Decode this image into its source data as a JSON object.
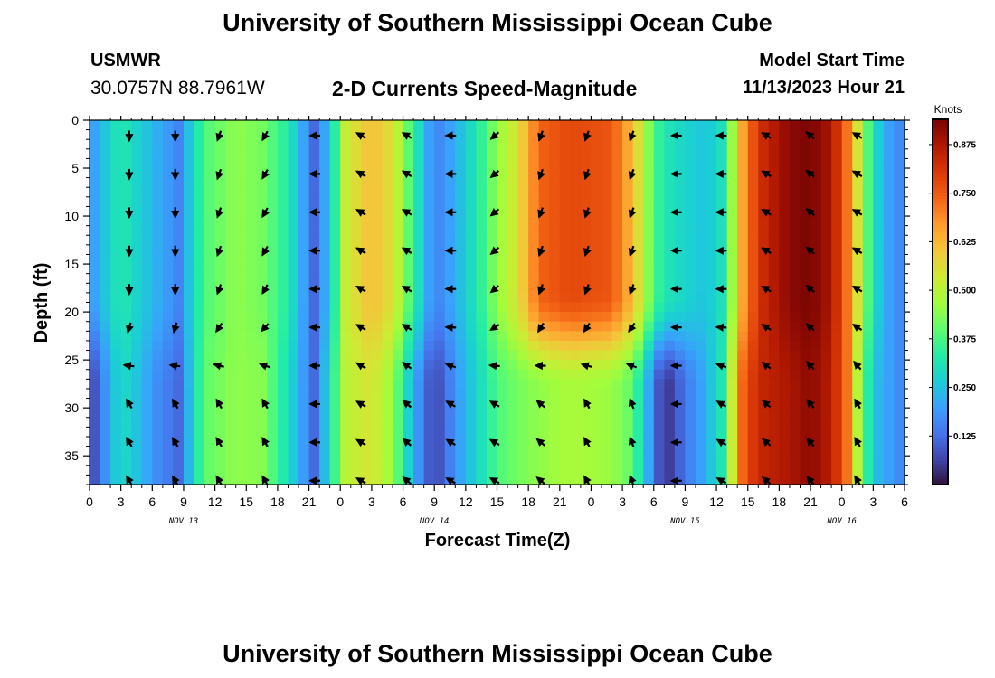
{
  "header": {
    "title": "University of Southern Mississippi Ocean Cube",
    "site": "USMWR",
    "coords": "30.0757N  88.7961W",
    "subtitle": "2-D Currents Speed-Magnitude",
    "model_start_label": "Model Start Time",
    "model_start_time": "11/13/2023 Hour 21"
  },
  "footer": {
    "title": "University of Southern Mississippi Ocean Cube"
  },
  "chart_data": {
    "type": "heatmap",
    "title": "2-D Currents Speed-Magnitude",
    "xlabel": "Forecast Time(Z)",
    "ylabel": "Depth (ft)",
    "xlim": [
      0,
      78
    ],
    "ylim": [
      38,
      0
    ],
    "x_unit": "hours since NOV 13 00Z",
    "x_tick_values": [
      0,
      3,
      6,
      9,
      12,
      15,
      18,
      21,
      24,
      27,
      30,
      33,
      36,
      39,
      42,
      45,
      48,
      51,
      54,
      57,
      60,
      63,
      66,
      69,
      72,
      75,
      78
    ],
    "x_tick_labels": [
      "0",
      "3",
      "6",
      "9",
      "12",
      "15",
      "18",
      "21",
      "0",
      "3",
      "6",
      "9",
      "12",
      "15",
      "18",
      "21",
      "0",
      "3",
      "6",
      "9",
      "12",
      "15",
      "18",
      "21",
      "0",
      "3",
      "6"
    ],
    "date_labels": [
      {
        "label": "NOV 13",
        "x": 9
      },
      {
        "label": "NOV 14",
        "x": 33
      },
      {
        "label": "NOV 15",
        "x": 57
      },
      {
        "label": "NOV 16",
        "x": 72
      }
    ],
    "y_tick_values": [
      0,
      5,
      10,
      15,
      20,
      25,
      30,
      35
    ],
    "y_tick_labels": [
      "0",
      "5",
      "10",
      "15",
      "20",
      "25",
      "30",
      "35"
    ],
    "colorbar": {
      "units": "Knots",
      "min": 0.0,
      "max": 0.94,
      "ticks": [
        0.125,
        0.25,
        0.375,
        0.5,
        0.625,
        0.75,
        0.875
      ],
      "tick_labels": [
        "0.125",
        "0.250",
        "0.375",
        "0.500",
        "0.625",
        "0.750",
        "0.875"
      ],
      "colormap": [
        "#30123b",
        "#4145ab",
        "#4675ed",
        "#39a2fc",
        "#1bcfd4",
        "#24eca6",
        "#61fc6c",
        "#a4fc3b",
        "#d1e834",
        "#f3c63a",
        "#fe9b2d",
        "#f36315",
        "#d93806",
        "#b11901",
        "#7a0403"
      ]
    },
    "speed_profile_upper": [
      [
        0,
        0.18
      ],
      [
        3,
        0.33
      ],
      [
        4.5,
        0.28
      ],
      [
        6.5,
        0.22
      ],
      [
        8.5,
        0.16
      ],
      [
        11,
        0.38
      ],
      [
        14,
        0.45
      ],
      [
        16.5,
        0.42
      ],
      [
        19,
        0.33
      ],
      [
        21.5,
        0.12
      ],
      [
        23,
        0.25
      ],
      [
        24.5,
        0.52
      ],
      [
        27,
        0.62
      ],
      [
        29,
        0.55
      ],
      [
        31,
        0.35
      ],
      [
        33,
        0.15
      ],
      [
        35,
        0.22
      ],
      [
        37,
        0.32
      ],
      [
        39,
        0.45
      ],
      [
        41,
        0.55
      ],
      [
        43,
        0.74
      ],
      [
        46,
        0.78
      ],
      [
        50,
        0.76
      ],
      [
        52,
        0.62
      ],
      [
        54,
        0.38
      ],
      [
        55,
        0.32
      ],
      [
        57,
        0.28
      ],
      [
        59,
        0.25
      ],
      [
        61,
        0.32
      ],
      [
        62,
        0.6
      ],
      [
        64,
        0.82
      ],
      [
        67,
        0.92
      ],
      [
        69,
        0.94
      ],
      [
        71,
        0.88
      ],
      [
        72.5,
        0.72
      ],
      [
        73.5,
        0.55
      ],
      [
        75,
        0.3
      ],
      [
        76.5,
        0.2
      ],
      [
        78,
        0.15
      ]
    ],
    "speed_profile_lower": [
      [
        0,
        0.05
      ],
      [
        3,
        0.3
      ],
      [
        4.5,
        0.25
      ],
      [
        6.5,
        0.17
      ],
      [
        8.5,
        0.12
      ],
      [
        11,
        0.4
      ],
      [
        14,
        0.45
      ],
      [
        16.5,
        0.44
      ],
      [
        19,
        0.3
      ],
      [
        21.5,
        0.12
      ],
      [
        23,
        0.3
      ],
      [
        24.5,
        0.5
      ],
      [
        27,
        0.55
      ],
      [
        29,
        0.45
      ],
      [
        31,
        0.22
      ],
      [
        33,
        0.06
      ],
      [
        35,
        0.18
      ],
      [
        37,
        0.28
      ],
      [
        39,
        0.38
      ],
      [
        41,
        0.42
      ],
      [
        43,
        0.45
      ],
      [
        46,
        0.48
      ],
      [
        50,
        0.46
      ],
      [
        52,
        0.4
      ],
      [
        54,
        0.15
      ],
      [
        55,
        0.03
      ],
      [
        57,
        0.14
      ],
      [
        59,
        0.22
      ],
      [
        61,
        0.35
      ],
      [
        62,
        0.7
      ],
      [
        64,
        0.84
      ],
      [
        67,
        0.88
      ],
      [
        69,
        0.92
      ],
      [
        71,
        0.86
      ],
      [
        72.5,
        0.72
      ],
      [
        73.5,
        0.5
      ],
      [
        75,
        0.25
      ],
      [
        76.5,
        0.2
      ],
      [
        78,
        0.15
      ]
    ],
    "vector_times": [
      3.8,
      8.2,
      12.4,
      16.8,
      21.6,
      26,
      30.4,
      34.6,
      38.8,
      43.2,
      47.6,
      51.9,
      56.2,
      60.5,
      64.8,
      69,
      73.5
    ],
    "vector_depths": [
      0,
      4,
      8,
      12,
      16,
      20,
      24,
      28,
      32,
      36
    ],
    "vector_dirs_upper": [
      180,
      180,
      200,
      210,
      270,
      300,
      300,
      270,
      230,
      200,
      200,
      200,
      270,
      270,
      300,
      310,
      300
    ],
    "vector_dirs_lower": [
      330,
      330,
      330,
      330,
      270,
      300,
      310,
      300,
      300,
      310,
      330,
      340,
      270,
      300,
      310,
      320,
      330
    ]
  }
}
